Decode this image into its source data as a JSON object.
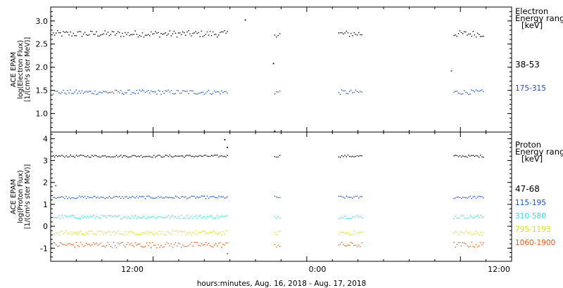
{
  "figure": {
    "xlabel": "hours:minutes, Aug. 16, 2018 - Aug. 17, 2018",
    "x_ticks": [
      "12:00",
      "0:00",
      "12:00"
    ]
  },
  "chart_data": [
    {
      "type": "scatter",
      "panel": "electron",
      "ylabel_lines": [
        "ACE EPAM",
        "log(Electron Flux)",
        "[1/(cm²s ster MeV)]"
      ],
      "ylim": [
        0.6,
        3.3
      ],
      "yticks": [
        "1.0",
        "1.5",
        "2.0",
        "2.5",
        "3.0"
      ],
      "ytick_values": [
        1.0,
        1.5,
        2.0,
        2.5,
        3.0
      ],
      "xlim_hours": [
        4.0,
        40.0
      ],
      "legend_title_lines": [
        "Electron",
        "Energy ranges",
        "[keV]"
      ],
      "series": [
        {
          "name": "38-53",
          "color": "#000000",
          "level": 2.72,
          "spread": 0.07,
          "segments": [
            [
              4.2,
              17.8
            ],
            [
              21.5,
              21.9
            ],
            [
              26.5,
              28.3
            ],
            [
              35.5,
              37.8
            ]
          ],
          "outliers": [
            [
              19.2,
              3.02
            ],
            [
              21.4,
              2.08
            ],
            [
              21.5,
              0.62
            ]
          ]
        },
        {
          "name": "175-315",
          "color": "#1a4fd6",
          "level": 1.46,
          "spread": 0.05,
          "segments": [
            [
              4.2,
              17.8
            ],
            [
              21.5,
              21.9
            ],
            [
              26.5,
              28.3
            ],
            [
              35.5,
              37.8
            ]
          ],
          "outliers": [
            [
              35.3,
              1.92
            ]
          ]
        }
      ]
    },
    {
      "type": "scatter",
      "panel": "proton",
      "ylabel_lines": [
        "ACE EPAM",
        "log(Proton Flux)",
        "[1/(cm²s ster MeV)]"
      ],
      "ylim": [
        -1.6,
        4.3
      ],
      "yticks": [
        "-1",
        "0",
        "1",
        "2",
        "3",
        "4"
      ],
      "ytick_values": [
        -1,
        0,
        1,
        2,
        3,
        4
      ],
      "xlim_hours": [
        4.0,
        40.0
      ],
      "legend_title_lines": [
        "Proton",
        "Energy ranges",
        "[keV]"
      ],
      "series": [
        {
          "name": "47-68",
          "color": "#000000",
          "level": 3.2,
          "spread": 0.05,
          "segments": [
            [
              4.2,
              17.8
            ],
            [
              21.5,
              21.9
            ],
            [
              26.5,
              28.3
            ],
            [
              35.5,
              37.8
            ]
          ],
          "outliers": [
            [
              17.6,
              3.95
            ],
            [
              17.8,
              3.6
            ]
          ]
        },
        {
          "name": "115-195",
          "color": "#1a4fd6",
          "level": 1.32,
          "spread": 0.06,
          "segments": [
            [
              4.2,
              17.8
            ],
            [
              21.5,
              21.9
            ],
            [
              26.5,
              28.3
            ],
            [
              35.5,
              37.8
            ]
          ],
          "outliers": [
            [
              4.4,
              1.85
            ]
          ]
        },
        {
          "name": "310-580",
          "color": "#33dddd",
          "level": 0.42,
          "spread": 0.08,
          "segments": [
            [
              4.2,
              17.8
            ],
            [
              21.5,
              21.9
            ],
            [
              26.5,
              28.3
            ],
            [
              35.5,
              37.8
            ]
          ],
          "outliers": []
        },
        {
          "name": "795-1193",
          "color": "#d4e21a",
          "level": -0.3,
          "spread": 0.1,
          "segments": [
            [
              4.2,
              17.8
            ],
            [
              21.5,
              21.9
            ],
            [
              26.5,
              28.3
            ],
            [
              35.5,
              37.8
            ]
          ],
          "outliers": []
        },
        {
          "name": "1060-1900",
          "color": "#ee5a14",
          "level": -0.85,
          "spread": 0.13,
          "segments": [
            [
              4.2,
              17.8
            ],
            [
              21.5,
              21.9
            ],
            [
              26.5,
              28.3
            ],
            [
              35.5,
              37.8
            ]
          ],
          "outliers": [
            [
              17.8,
              -1.25
            ]
          ]
        }
      ]
    }
  ]
}
